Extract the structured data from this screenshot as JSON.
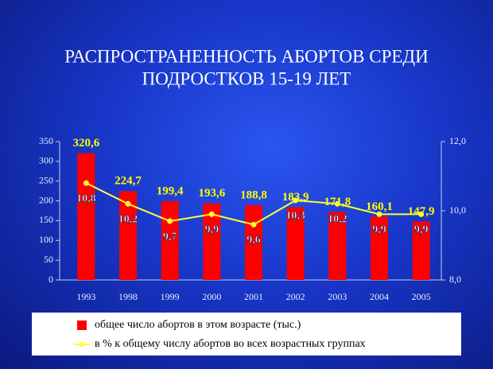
{
  "chart_data": {
    "type": "bar",
    "title": [
      "РАСПРОСТРАНЕННОСТЬ АБОРТОВ СРЕДИ",
      "ПОДРОСТКОВ 15-19 ЛЕТ"
    ],
    "categories": [
      "1993",
      "1998",
      "1999",
      "2000",
      "2001",
      "2002",
      "2003",
      "2004",
      "2005"
    ],
    "series": [
      {
        "name": "общее число абортов в этом возрасте (тыс.)",
        "type": "bar",
        "color": "#ff0000",
        "values": [
          320.6,
          224.7,
          199.4,
          193.6,
          188.8,
          183.9,
          171.8,
          160.1,
          147.9
        ],
        "value_labels": [
          "320,6",
          "224,7",
          "199,4",
          "193,6",
          "188,8",
          "183,9",
          "171,8",
          "160,1",
          "147,9"
        ]
      },
      {
        "name": "в % к общему числу абортов во всех возрастных группах",
        "type": "line",
        "color": "#ffff33",
        "axis": "y2",
        "values": [
          10.8,
          10.2,
          9.7,
          9.9,
          9.6,
          10.3,
          10.2,
          9.9,
          9.9
        ],
        "value_labels": [
          "10,8",
          "10,2",
          "9,7",
          "9,9",
          "9,6",
          "10,3",
          "10,2",
          "9,9",
          "9,9"
        ]
      }
    ],
    "ylim": [
      0,
      350
    ],
    "yticks": [
      0,
      50,
      100,
      150,
      200,
      250,
      300,
      350
    ],
    "y2lim": [
      8,
      12
    ],
    "y2ticks": [
      {
        "value": 8,
        "label": "8,0"
      },
      {
        "value": 10,
        "label": "10,0"
      },
      {
        "value": 12,
        "label": "12,0"
      }
    ]
  }
}
